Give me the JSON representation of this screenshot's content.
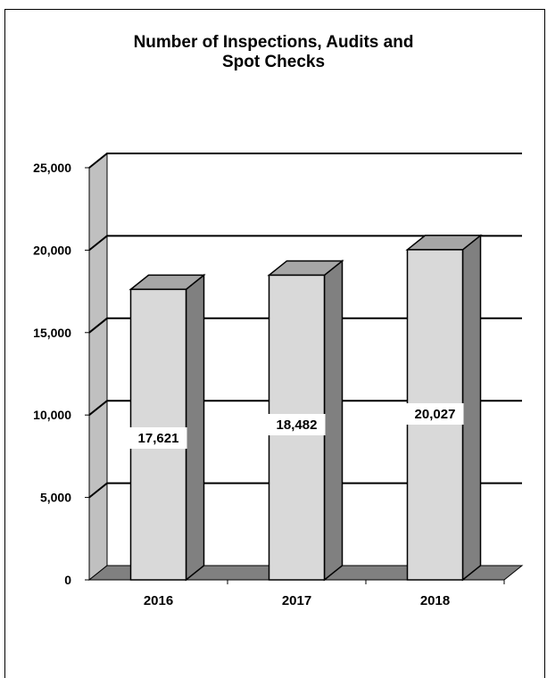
{
  "chart_data": {
    "type": "bar",
    "title_lines": [
      "Number of Inspections, Audits and",
      "Spot Checks"
    ],
    "categories": [
      "2016",
      "2017",
      "2018"
    ],
    "values": [
      17621,
      18482,
      20027
    ],
    "data_labels": [
      "17,621",
      "18,482",
      "20,027"
    ],
    "y_ticks": [
      "0",
      "5,000",
      "10,000",
      "15,000",
      "20,000",
      "25,000"
    ],
    "ylim": [
      0,
      25000
    ],
    "grid": true,
    "style": "3d",
    "colors": {
      "bar_front": "#d9d9d9",
      "bar_side": "#808080",
      "bar_top": "#a6a6a6",
      "wall": "#c0c0c0",
      "floor": "#808080"
    }
  }
}
